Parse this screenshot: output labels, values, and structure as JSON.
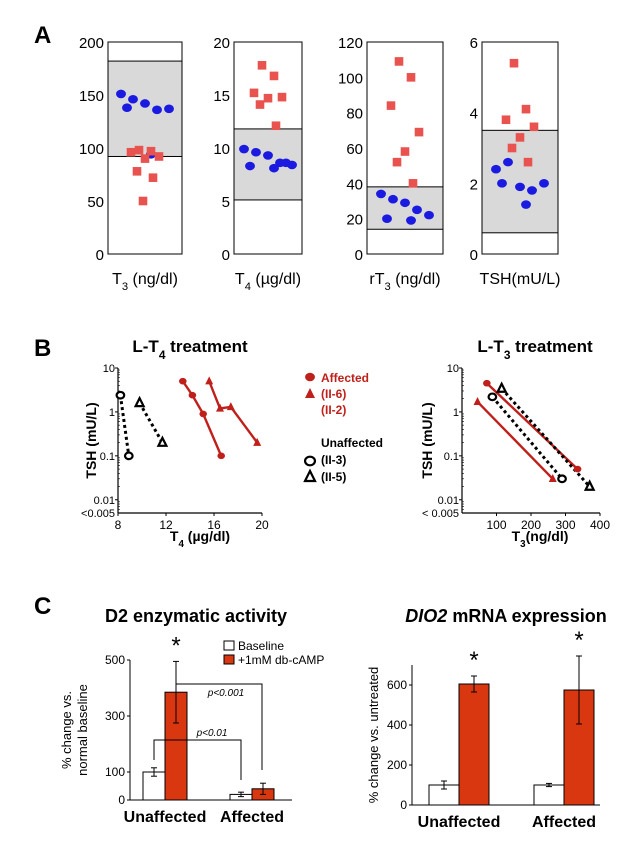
{
  "colors": {
    "affected": "#e8534f",
    "unaffected": "#1a1ae0",
    "affected_dark": "#c0201b",
    "bar_red": "#d9370f",
    "normal_range": "#d9d9d9"
  },
  "panel_labels": {
    "a": "A",
    "b": "B",
    "c": "C"
  },
  "chart_data": [
    {
      "type": "scatter",
      "panel": "A",
      "xlabel": "T",
      "xlabel_sub": "3",
      "xlabel_unit": " (ng/dl)",
      "ylim": [
        0,
        200
      ],
      "yticks": [
        "0",
        "50",
        "100",
        "150",
        "200"
      ],
      "normal_range": [
        92,
        182
      ],
      "series": [
        {
          "marker": "circle",
          "values": [
            151,
            146,
            142,
            136,
            137,
            138,
            94
          ]
        },
        {
          "marker": "square",
          "values": [
            98,
            97,
            96,
            92,
            90,
            78,
            72,
            50
          ]
        }
      ]
    },
    {
      "type": "scatter",
      "panel": "A",
      "xlabel": "T",
      "xlabel_sub": "4",
      "xlabel_unit": " (µg/dl)",
      "ylim": [
        0,
        20
      ],
      "yticks": [
        "0",
        "5",
        "10",
        "15",
        "20"
      ],
      "normal_range": [
        5.1,
        11.8
      ],
      "series": [
        {
          "marker": "circle",
          "values": [
            9.9,
            9.6,
            9.3,
            8.6,
            8.4,
            8.3,
            8.1,
            8.6
          ]
        },
        {
          "marker": "square",
          "values": [
            17.8,
            16.8,
            15.2,
            14.8,
            14.7,
            14.1,
            12.1
          ]
        }
      ]
    },
    {
      "type": "scatter",
      "panel": "A",
      "xlabel": "rT",
      "xlabel_sub": "3",
      "xlabel_unit": " (ng/dl)",
      "ylim": [
        0,
        120
      ],
      "yticks": [
        "0",
        "20",
        "40",
        "60",
        "80",
        "100",
        "120"
      ],
      "normal_range": [
        14,
        38
      ],
      "series": [
        {
          "marker": "circle",
          "values": [
            34,
            31,
            29,
            25,
            22,
            20,
            19
          ]
        },
        {
          "marker": "square",
          "values": [
            109,
            100,
            84,
            69,
            58,
            52,
            40
          ]
        }
      ]
    },
    {
      "type": "scatter",
      "panel": "A",
      "xlabel": "TSH",
      "xlabel_sub": "",
      "xlabel_unit": "(mU/L)",
      "ylim": [
        0,
        6
      ],
      "yticks": [
        "0",
        "2",
        "4",
        "6"
      ],
      "normal_range": [
        0.6,
        3.5
      ],
      "series": [
        {
          "marker": "circle",
          "values": [
            2.4,
            2.6,
            1.9,
            1.8,
            2.0,
            2.0,
            1.4
          ]
        },
        {
          "marker": "square",
          "values": [
            5.4,
            4.1,
            3.8,
            3.6,
            3.3,
            3.0,
            2.6
          ]
        }
      ]
    },
    {
      "type": "line",
      "panel": "B",
      "title": "L-T",
      "title_sub": "4",
      "title_rest": " treatment",
      "ylabel": "TSH (mU/L)",
      "xlabel": "T",
      "xlabel_sub": "4",
      "xlabel_unit": " (µg/dl)",
      "xlim": [
        8,
        20
      ],
      "xticks": [
        "8",
        "12",
        "16",
        "20"
      ],
      "ylim_log": [
        0.005,
        10
      ],
      "yticks": [
        "10",
        "1",
        "0.1",
        "0.01",
        "<0.005"
      ],
      "series": [
        {
          "group": "affected",
          "marker": "circle",
          "dashed": false,
          "points": [
            [
              13.4,
              5.0
            ],
            [
              14.2,
              2.4
            ],
            [
              15.1,
              0.9
            ],
            [
              16.6,
              0.1
            ]
          ]
        },
        {
          "group": "affected",
          "marker": "triangle",
          "dashed": false,
          "points": [
            [
              15.6,
              5.0
            ],
            [
              16.5,
              1.2
            ],
            [
              17.4,
              1.3
            ],
            [
              19.6,
              0.2
            ]
          ]
        },
        {
          "group": "unaffected",
          "marker": "circle",
          "dashed": true,
          "points": [
            [
              8.2,
              2.4
            ],
            [
              8.9,
              0.1
            ]
          ]
        },
        {
          "group": "unaffected",
          "marker": "triangle",
          "dashed": true,
          "points": [
            [
              9.8,
              1.6
            ],
            [
              11.7,
              0.2
            ]
          ]
        }
      ]
    },
    {
      "type": "line",
      "panel": "B",
      "title": "L-T",
      "title_sub": "3",
      "title_rest": " treatment",
      "ylabel": "TSH (mU/L)",
      "xlabel": "T",
      "xlabel_sub": "3",
      "xlabel_unit": "(ng/dl)",
      "xlim": [
        0,
        400
      ],
      "xticks": [
        "100",
        "200",
        "300",
        "400"
      ],
      "ylim_log": [
        0.005,
        10
      ],
      "yticks": [
        "10",
        "1",
        "0.1",
        "0.01",
        "< 0.005"
      ],
      "series": [
        {
          "group": "affected",
          "marker": "circle",
          "dashed": false,
          "points": [
            [
              72,
              4.5
            ],
            [
              335,
              0.05
            ]
          ]
        },
        {
          "group": "affected",
          "marker": "triangle",
          "dashed": false,
          "points": [
            [
              45,
              1.7
            ],
            [
              263,
              0.03
            ]
          ]
        },
        {
          "group": "unaffected",
          "marker": "circle",
          "dashed": true,
          "points": [
            [
              88,
              2.2
            ],
            [
              290,
              0.03
            ]
          ]
        },
        {
          "group": "unaffected",
          "marker": "triangle",
          "dashed": true,
          "points": [
            [
              115,
              3.4
            ],
            [
              370,
              0.02
            ]
          ]
        }
      ]
    },
    {
      "type": "bar",
      "panel": "C",
      "title": "D2 enzymatic activity",
      "ylabel_lines": [
        "% change vs.",
        "normal baseline"
      ],
      "categories": [
        "Unaffected",
        "Affected"
      ],
      "ylim": [
        0,
        500
      ],
      "yticks": [
        "0",
        "100",
        "300",
        "500"
      ],
      "series": [
        {
          "name": "Baseline",
          "values": [
            100,
            20
          ],
          "errors": [
            15,
            8
          ]
        },
        {
          "name": "+1mM db-cAMP",
          "values": [
            385,
            40
          ],
          "errors": [
            110,
            20
          ]
        }
      ],
      "significance": [
        "*"
      ],
      "comparisons": [
        "p<0.001",
        "p<0.01"
      ]
    },
    {
      "type": "bar",
      "panel": "C",
      "title": "DIO2",
      "title_rest": " mRNA expression",
      "ylabel": "% change vs. untreated",
      "categories": [
        "Unaffected",
        "Affected"
      ],
      "ylim": [
        0,
        700
      ],
      "yticks": [
        "0",
        "200",
        "400",
        "600"
      ],
      "series": [
        {
          "values": [
            100,
            100
          ],
          "errors": [
            20,
            8
          ]
        },
        {
          "values": [
            605,
            575
          ],
          "errors": [
            40,
            170
          ]
        }
      ],
      "significance": [
        "*",
        "*"
      ]
    }
  ],
  "legend_b": {
    "affected": "Affected",
    "affected_ids": [
      "(II-6)",
      "(II-2)"
    ],
    "unaffected": "Unaffected",
    "unaffected_ids": [
      "(II-3)",
      "(II-5)"
    ]
  }
}
